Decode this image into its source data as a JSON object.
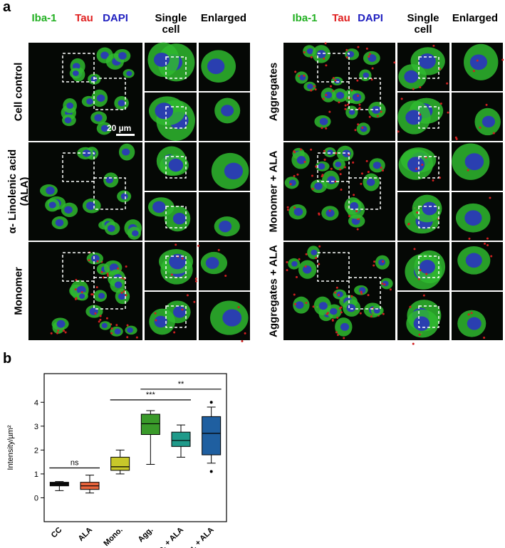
{
  "panel_a": {
    "label": "a",
    "left": {
      "headers": [
        "Iba-1",
        "Tau",
        "DAPI",
        "Single cell",
        "Enlarged"
      ],
      "rows": [
        "Cell control",
        "α- Linolenic acid (ALA)",
        "Monomer"
      ],
      "scale_bar": "20 µm"
    },
    "right": {
      "headers": [
        "Iba-1",
        "Tau",
        "DAPI",
        "Single cell",
        "Enlarged"
      ],
      "rows": [
        "Aggregates",
        "Monomer + ALA",
        "Aggregates + ALA"
      ]
    }
  },
  "chart_data": {
    "type": "box",
    "panel_label": "b",
    "y_label": "Intensity/µm²",
    "categories": [
      "CC",
      "ALA",
      "Mono.",
      "Agg.",
      "Mono. + ALA",
      "Agg. + ALA"
    ],
    "boxes": [
      {
        "min": 0.3,
        "q1": 0.5,
        "median": 0.58,
        "q3": 0.65,
        "max": 0.68,
        "outliers": [],
        "color": "#111111"
      },
      {
        "min": 0.2,
        "q1": 0.35,
        "median": 0.5,
        "q3": 0.65,
        "max": 0.95,
        "outliers": [],
        "color": "#e8643c"
      },
      {
        "min": 1.0,
        "q1": 1.15,
        "median": 1.3,
        "q3": 1.7,
        "max": 2.0,
        "outliers": [],
        "color": "#c8c82a"
      },
      {
        "min": 1.4,
        "q1": 2.65,
        "median": 3.1,
        "q3": 3.5,
        "max": 3.65,
        "outliers": [],
        "color": "#3a9a2a"
      },
      {
        "min": 1.7,
        "q1": 2.15,
        "median": 2.4,
        "q3": 2.75,
        "max": 3.05,
        "outliers": [],
        "color": "#1f9a8a"
      },
      {
        "min": 1.45,
        "q1": 1.8,
        "median": 2.7,
        "q3": 3.4,
        "max": 3.8,
        "outliers": [
          4.0,
          1.1
        ],
        "color": "#1f5fa0"
      }
    ],
    "annotations": [
      {
        "text": "ns",
        "from": "CC",
        "to": "ALA",
        "y": 1.25
      },
      {
        "text": "***",
        "from": "Mono.",
        "to": "Mono. + ALA",
        "y": 4.1
      },
      {
        "text": "**",
        "from": "Agg.",
        "to": "Agg. + ALA",
        "y": 4.55
      }
    ],
    "ylim": [
      -1,
      5.2
    ],
    "yticks": [
      0,
      1,
      2,
      3,
      4
    ]
  }
}
